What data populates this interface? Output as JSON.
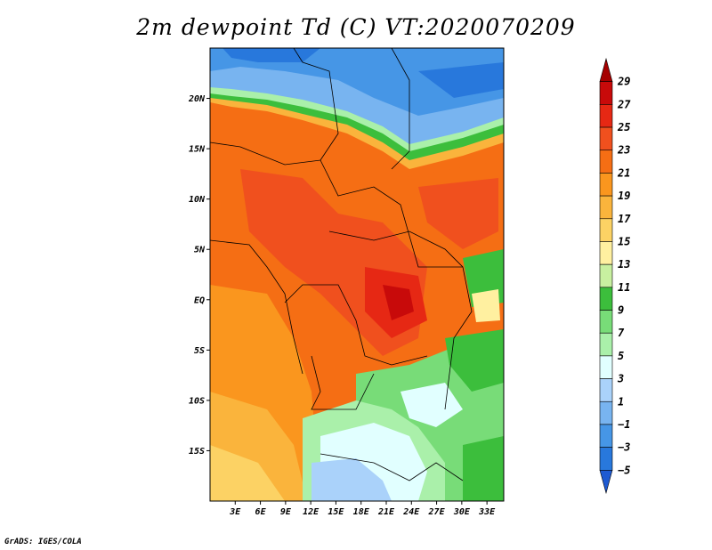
{
  "title": "2m dewpoint Td (C) VT:2020070209",
  "credit": "GrADS: IGES/COLA",
  "map": {
    "lat_range": [
      -20,
      25
    ],
    "lon_range": [
      0,
      35
    ],
    "lat_ticks": [
      {
        "value": 20,
        "label": "20N"
      },
      {
        "value": 15,
        "label": "15N"
      },
      {
        "value": 10,
        "label": "10N"
      },
      {
        "value": 5,
        "label": "5N"
      },
      {
        "value": 0,
        "label": "EQ"
      },
      {
        "value": -5,
        "label": "5S"
      },
      {
        "value": -10,
        "label": "10S"
      },
      {
        "value": -15,
        "label": "15S"
      }
    ],
    "lon_ticks": [
      {
        "value": 3,
        "label": "3E"
      },
      {
        "value": 6,
        "label": "6E"
      },
      {
        "value": 9,
        "label": "9E"
      },
      {
        "value": 12,
        "label": "12E"
      },
      {
        "value": 15,
        "label": "15E"
      },
      {
        "value": 18,
        "label": "18E"
      },
      {
        "value": 21,
        "label": "21E"
      },
      {
        "value": 24,
        "label": "24E"
      },
      {
        "value": 27,
        "label": "27E"
      },
      {
        "value": 30,
        "label": "30E"
      },
      {
        "value": 33,
        "label": "33E"
      }
    ]
  },
  "colorbar": {
    "levels": [
      29,
      27,
      25,
      23,
      21,
      19,
      17,
      15,
      13,
      11,
      9,
      7,
      5,
      3,
      1,
      -1,
      -3,
      -5
    ],
    "labels": [
      "29",
      "27",
      "25",
      "23",
      "21",
      "19",
      "17",
      "15",
      "13",
      "11",
      "9",
      "7",
      "5",
      "3",
      "1",
      "−1",
      "−3",
      "−5"
    ],
    "colors": [
      "#a50000",
      "#c80a0a",
      "#e62814",
      "#f0501e",
      "#f56e14",
      "#fa961e",
      "#fab43c",
      "#fcd264",
      "#fff0a0",
      "#c8f0a0",
      "#3cbe3c",
      "#78dc78",
      "#aaf0aa",
      "#e1ffff",
      "#aad2fa",
      "#78b4f0",
      "#4696e6",
      "#2878dc",
      "#1e5ad2"
    ]
  }
}
